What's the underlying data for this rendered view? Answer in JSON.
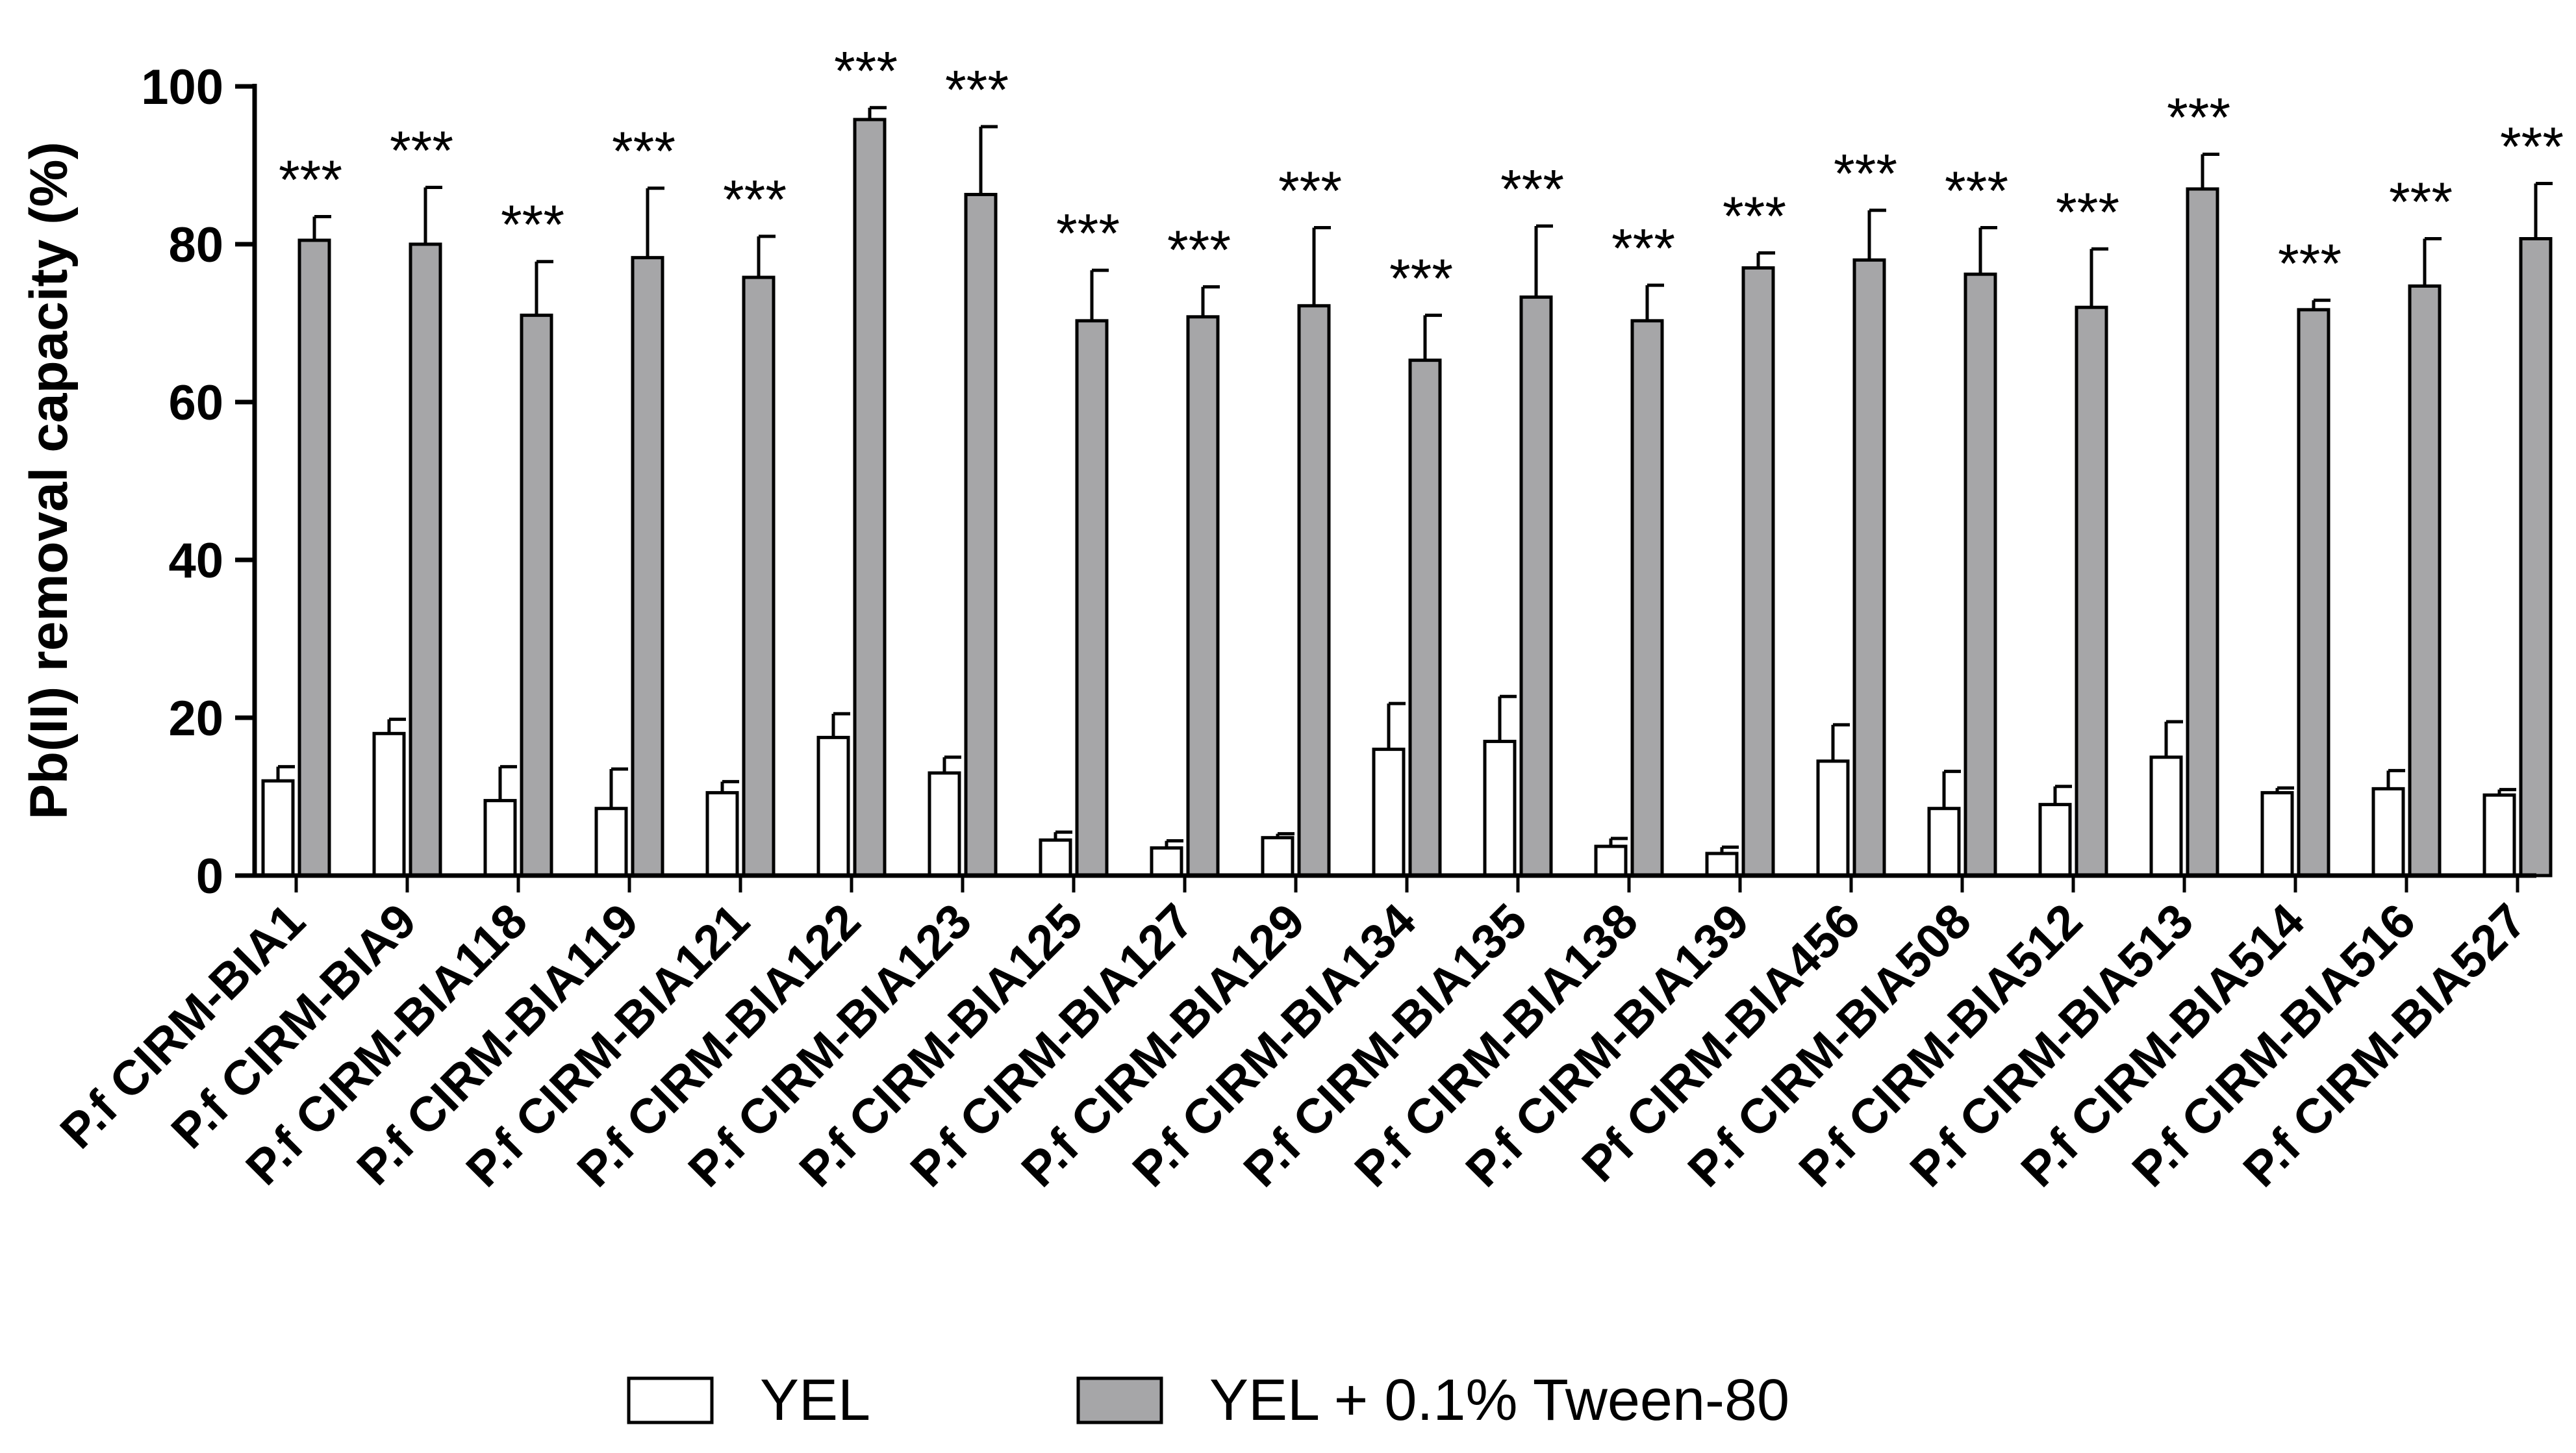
{
  "chart_data": {
    "type": "bar",
    "ylabel": "Pb(II) removal capacity (%)",
    "xlabel": "",
    "ylim": [
      0,
      100
    ],
    "yticks": [
      0,
      20,
      40,
      60,
      80,
      100
    ],
    "legend_position": "bottom",
    "grid": false,
    "categories": [
      "P.f CIRM-BIA1",
      "P.f CIRM-BIA9",
      "P.f CIRM-BIA118",
      "P.f CIRM-BIA119",
      "P.f CIRM-BIA121",
      "P.f CIRM-BIA122",
      "P.f CIRM-BIA123",
      "P.f CIRM-BIA125",
      "P.f CIRM-BIA127",
      "P.f CIRM-BIA129",
      "P.f CIRM-BIA134",
      "P.f CIRM-BIA135",
      "P.f CIRM-BIA138",
      "P.f CIRM-BIA139",
      "Pf CIRM-BIA456",
      "P.f CIRM-BIA508",
      "P.f CIRM-BIA512",
      "P.f CIRM-BIA513",
      "P.f CIRM-BIA514",
      "P.f CIRM-BIA516",
      "P.f CIRM-BIA527"
    ],
    "series": [
      {
        "name": "YEL",
        "color": "#ffffff",
        "values": [
          12,
          18,
          9.5,
          8.5,
          10.5,
          17.5,
          13,
          4.5,
          3.5,
          4.8,
          16,
          17,
          3.7,
          2.8,
          14.5,
          8.5,
          9,
          15,
          10.5,
          11,
          10.2
        ],
        "errors": [
          1.8,
          1.8,
          4.3,
          5,
          1.4,
          3,
          2,
          1,
          0.9,
          0.5,
          5.8,
          5.7,
          1,
          0.8,
          4.6,
          4.7,
          2.3,
          4.5,
          0.6,
          2.3,
          0.7
        ]
      },
      {
        "name": "YEL + 0.1% Tween-80",
        "color": "#a6a6a8",
        "values": [
          80.5,
          80,
          71,
          78.3,
          75.8,
          95.8,
          86.3,
          70.3,
          70.8,
          72.2,
          65.3,
          73.3,
          70.3,
          77,
          78,
          76.2,
          72,
          87,
          71.7,
          74.7,
          80.7
        ],
        "errors": [
          3,
          7.2,
          6.8,
          8.8,
          5.2,
          1.5,
          8.6,
          6.4,
          3.8,
          9.9,
          5.7,
          9,
          4.5,
          1.9,
          6.3,
          5.9,
          7.4,
          4.4,
          1.2,
          6,
          7
        ]
      }
    ],
    "annotations": [
      "***",
      "***",
      "***",
      "***",
      "***",
      "***",
      "***",
      "***",
      "***",
      "***",
      "***",
      "***",
      "***",
      "***",
      "***",
      "***",
      "***",
      "***",
      "***",
      "***",
      "***"
    ]
  }
}
